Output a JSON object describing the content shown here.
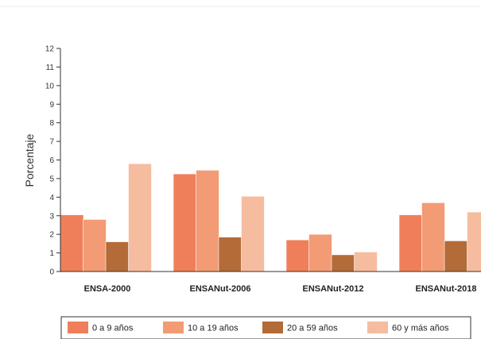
{
  "chart_data": {
    "type": "bar",
    "ylabel": "Porcentaje",
    "xlabel": "",
    "ylim": [
      0,
      12
    ],
    "yticks": [
      0,
      1,
      2,
      3,
      4,
      5,
      6,
      7,
      8,
      9,
      10,
      11,
      12
    ],
    "grid": false,
    "legend_position": "bottom",
    "categories": [
      "ENSA-2000",
      "ENSANut-2006",
      "ENSANut-2012",
      "ENSANut-2018"
    ],
    "series": [
      {
        "name": "0 a 9 años",
        "color": "#ef7f5a",
        "values": [
          3.05,
          5.25,
          1.7,
          3.05
        ]
      },
      {
        "name": "10 a 19 años",
        "color": "#f29b74",
        "values": [
          2.8,
          5.45,
          2.0,
          3.7
        ]
      },
      {
        "name": "20 a 59 años",
        "color": "#b36b38",
        "values": [
          1.6,
          1.85,
          0.9,
          1.65
        ]
      },
      {
        "name": "60 y más años",
        "color": "#f5bca0",
        "values": [
          5.8,
          4.05,
          1.05,
          3.2
        ]
      }
    ]
  }
}
